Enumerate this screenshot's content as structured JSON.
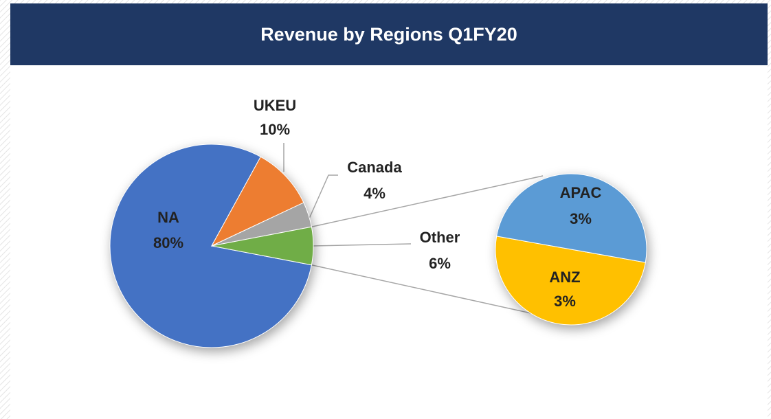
{
  "chart_data": {
    "type": "pie-of-pie",
    "title": "Revenue by Regions Q1FY20",
    "categories": [
      "NA",
      "UKEU",
      "Canada",
      "Other"
    ],
    "values": [
      80,
      10,
      4,
      6
    ],
    "value_labels": [
      "80%",
      "10%",
      "4%",
      "6%"
    ],
    "colors": [
      "#4472c4",
      "#ed7d31",
      "#a5a5a5",
      "#70ad47"
    ],
    "secondary": {
      "categories": [
        "ANZ",
        "APAC"
      ],
      "values": [
        3,
        3
      ],
      "value_labels": [
        "3%",
        "3%"
      ],
      "colors": [
        "#ffc000",
        "#5b9bd5"
      ]
    }
  }
}
